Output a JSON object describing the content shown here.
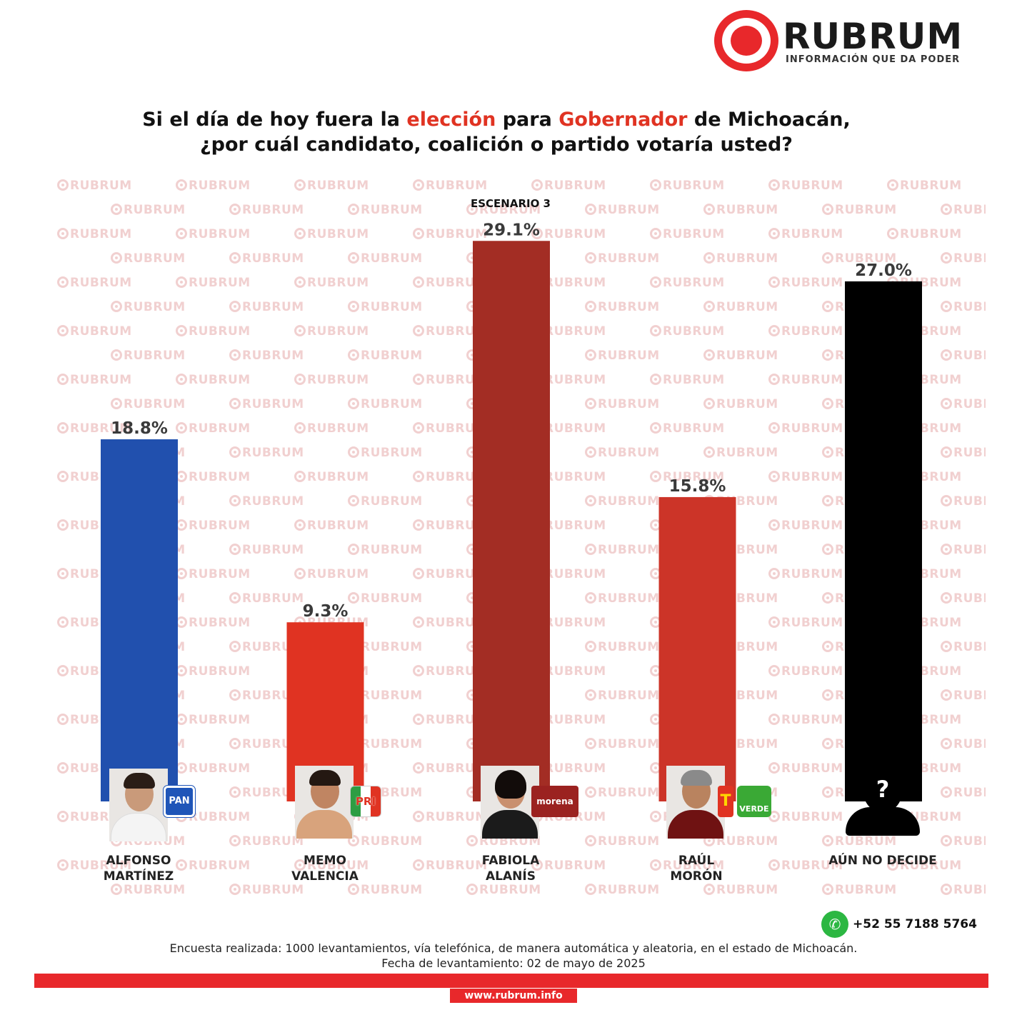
{
  "brand": {
    "name": "RUBRUM",
    "tagline": "INFORMACIÓN QUE DA PODER",
    "watermark": "RUBRUM",
    "color": "#e8282b"
  },
  "title": {
    "part1": "Si el día de hoy fuera la ",
    "highlight1": "elección",
    "part2": " para ",
    "highlight2": "Gobernador",
    "part3": " de Michoacán,",
    "line2": "¿por cuál candidato, coalición o partido votaría usted?"
  },
  "scenario": "ESCENARIO 3",
  "chart_data": {
    "type": "bar",
    "title": "Si el día de hoy fuera la elección para Gobernador de Michoacán, ¿por cuál candidato, coalición o partido votaría usted?",
    "subtitle": "ESCENARIO 3",
    "categories": [
      "ALFONSO MARTÍNEZ",
      "MEMO VALENCIA",
      "FABIOLA ALANÍS",
      "RAÚL MORÓN",
      "AÚN NO DECIDE"
    ],
    "values": [
      18.8,
      9.3,
      29.1,
      15.8,
      27.0
    ],
    "labels": [
      "18.8%",
      "9.3%",
      "29.1%",
      "15.8%",
      "27.0%"
    ],
    "colors": [
      "#2150ae",
      "#e03322",
      "#a32d24",
      "#cc3428",
      "#000000"
    ],
    "ylim": [
      0,
      30
    ],
    "grid": false,
    "legend": "none"
  },
  "candidates": [
    {
      "name_line1": "ALFONSO",
      "name_line2": "MARTÍNEZ",
      "party": "PAN",
      "party_icon": "pan-logo-icon"
    },
    {
      "name_line1": "MEMO",
      "name_line2": "VALENCIA",
      "party": "PRI",
      "party_icon": "pri-logo-icon"
    },
    {
      "name_line1": "FABIOLA",
      "name_line2": "ALANÍS",
      "party": "morena",
      "party_icon": "morena-logo-icon"
    },
    {
      "name_line1": "RAÚL",
      "name_line2": "MORÓN",
      "party": "PT",
      "party2": "VERDE",
      "party_icon": "pt-verde-logo-icon"
    },
    {
      "name_line1": "AÚN NO DECIDE",
      "name_line2": "",
      "party": "",
      "party_icon": "unknown-person-icon",
      "mark": "?"
    }
  ],
  "footer": {
    "phone": "+52 55 7188 5764",
    "note": "Encuesta realizada: 1000 levantamientos, vía telefónica, de manera automática y aleatoria, en el estado de Michoacán.",
    "date": "Fecha de levantamiento: 02 de mayo de 2025",
    "url": "www.rubrum.info"
  }
}
